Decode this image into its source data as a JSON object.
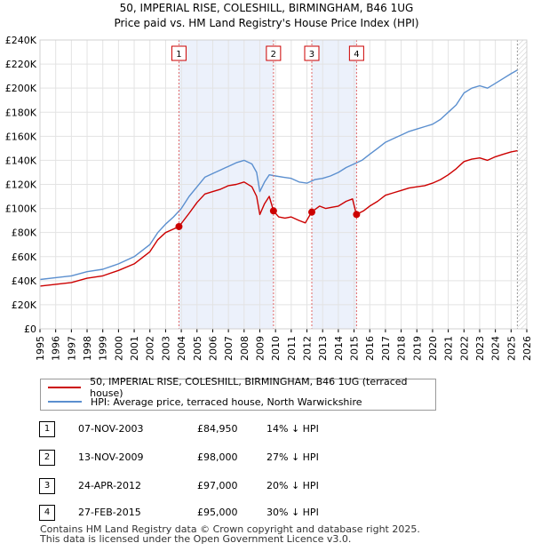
{
  "chart_data": {
    "type": "line",
    "title": "50, IMPERIAL RISE, COLESHILL, BIRMINGHAM, B46 1UG",
    "subtitle": "Price paid vs. HM Land Registry's House Price Index (HPI)",
    "xlim": [
      1995,
      2026
    ],
    "ylim": [
      0,
      240000
    ],
    "x_ticks": [
      "1995",
      "1996",
      "1997",
      "1998",
      "1999",
      "2000",
      "2001",
      "2002",
      "2003",
      "2004",
      "2005",
      "2006",
      "2007",
      "2008",
      "2009",
      "2010",
      "2011",
      "2012",
      "2013",
      "2014",
      "2015",
      "2016",
      "2017",
      "2018",
      "2019",
      "2020",
      "2021",
      "2022",
      "2023",
      "2024",
      "2025",
      "2026"
    ],
    "y_ticks": [
      {
        "value": 0,
        "label": "£0"
      },
      {
        "value": 20000,
        "label": "£20K"
      },
      {
        "value": 40000,
        "label": "£40K"
      },
      {
        "value": 60000,
        "label": "£60K"
      },
      {
        "value": 80000,
        "label": "£80K"
      },
      {
        "value": 100000,
        "label": "£100K"
      },
      {
        "value": 120000,
        "label": "£120K"
      },
      {
        "value": 140000,
        "label": "£140K"
      },
      {
        "value": 160000,
        "label": "£160K"
      },
      {
        "value": 180000,
        "label": "£180K"
      },
      {
        "value": 200000,
        "label": "£200K"
      },
      {
        "value": 220000,
        "label": "£220K"
      },
      {
        "value": 240000,
        "label": "£240K"
      }
    ],
    "data_end": 2025.4,
    "series": [
      {
        "name": "50, IMPERIAL RISE, COLESHILL, BIRMINGHAM, B46 1UG (terraced house)",
        "color": "#cc0000",
        "points": [
          [
            1995.0,
            35500
          ],
          [
            1996.0,
            37000
          ],
          [
            1997.0,
            38500
          ],
          [
            1998.0,
            42000
          ],
          [
            1999.0,
            44000
          ],
          [
            2000.0,
            48500
          ],
          [
            2001.0,
            54000
          ],
          [
            2002.0,
            64000
          ],
          [
            2002.5,
            74000
          ],
          [
            2003.0,
            80000
          ],
          [
            2003.85,
            84950
          ],
          [
            2004.5,
            96000
          ],
          [
            2005.0,
            105000
          ],
          [
            2005.5,
            112000
          ],
          [
            2006.0,
            114000
          ],
          [
            2006.5,
            116000
          ],
          [
            2007.0,
            119000
          ],
          [
            2007.5,
            120000
          ],
          [
            2008.0,
            122000
          ],
          [
            2008.5,
            118000
          ],
          [
            2008.8,
            110000
          ],
          [
            2009.0,
            95000
          ],
          [
            2009.3,
            104000
          ],
          [
            2009.6,
            110000
          ],
          [
            2009.87,
            98000
          ],
          [
            2010.2,
            93000
          ],
          [
            2010.6,
            92000
          ],
          [
            2011.0,
            93000
          ],
          [
            2011.5,
            90000
          ],
          [
            2011.9,
            88000
          ],
          [
            2012.3,
            97000
          ],
          [
            2012.8,
            102000
          ],
          [
            2013.2,
            100000
          ],
          [
            2013.6,
            101000
          ],
          [
            2014.0,
            102000
          ],
          [
            2014.5,
            106000
          ],
          [
            2014.9,
            108000
          ],
          [
            2015.15,
            95000
          ],
          [
            2015.6,
            98000
          ],
          [
            2016.0,
            102000
          ],
          [
            2016.5,
            106000
          ],
          [
            2017.0,
            111000
          ],
          [
            2017.5,
            113000
          ],
          [
            2018.0,
            115000
          ],
          [
            2018.5,
            117000
          ],
          [
            2019.0,
            118000
          ],
          [
            2019.5,
            119000
          ],
          [
            2020.0,
            121000
          ],
          [
            2020.5,
            124000
          ],
          [
            2021.0,
            128000
          ],
          [
            2021.5,
            133000
          ],
          [
            2022.0,
            139000
          ],
          [
            2022.5,
            141000
          ],
          [
            2023.0,
            142000
          ],
          [
            2023.5,
            140000
          ],
          [
            2024.0,
            143000
          ],
          [
            2024.5,
            145000
          ],
          [
            2025.0,
            147000
          ],
          [
            2025.4,
            148000
          ]
        ]
      },
      {
        "name": "HPI: Average price, terraced house, North Warwickshire",
        "color": "#5b8fcf",
        "points": [
          [
            1995.0,
            41000
          ],
          [
            1996.0,
            42500
          ],
          [
            1997.0,
            44000
          ],
          [
            1998.0,
            47500
          ],
          [
            1999.0,
            49500
          ],
          [
            2000.0,
            54000
          ],
          [
            2001.0,
            60000
          ],
          [
            2002.0,
            70000
          ],
          [
            2002.5,
            80000
          ],
          [
            2003.0,
            87000
          ],
          [
            2003.5,
            93000
          ],
          [
            2004.0,
            100000
          ],
          [
            2004.5,
            110000
          ],
          [
            2005.0,
            118000
          ],
          [
            2005.5,
            126000
          ],
          [
            2006.0,
            129000
          ],
          [
            2006.5,
            132000
          ],
          [
            2007.0,
            135000
          ],
          [
            2007.5,
            138000
          ],
          [
            2008.0,
            140000
          ],
          [
            2008.5,
            137000
          ],
          [
            2008.8,
            130000
          ],
          [
            2009.0,
            114000
          ],
          [
            2009.3,
            122000
          ],
          [
            2009.6,
            128000
          ],
          [
            2010.0,
            127000
          ],
          [
            2010.5,
            126000
          ],
          [
            2011.0,
            125000
          ],
          [
            2011.5,
            122000
          ],
          [
            2012.0,
            121000
          ],
          [
            2012.5,
            124000
          ],
          [
            2013.0,
            125000
          ],
          [
            2013.5,
            127000
          ],
          [
            2014.0,
            130000
          ],
          [
            2014.5,
            134000
          ],
          [
            2015.0,
            137000
          ],
          [
            2015.5,
            140000
          ],
          [
            2016.0,
            145000
          ],
          [
            2016.5,
            150000
          ],
          [
            2017.0,
            155000
          ],
          [
            2017.5,
            158000
          ],
          [
            2018.0,
            161000
          ],
          [
            2018.5,
            164000
          ],
          [
            2019.0,
            166000
          ],
          [
            2019.5,
            168000
          ],
          [
            2020.0,
            170000
          ],
          [
            2020.5,
            174000
          ],
          [
            2021.0,
            180000
          ],
          [
            2021.5,
            186000
          ],
          [
            2022.0,
            196000
          ],
          [
            2022.5,
            200000
          ],
          [
            2023.0,
            202000
          ],
          [
            2023.5,
            200000
          ],
          [
            2024.0,
            204000
          ],
          [
            2024.5,
            208000
          ],
          [
            2025.0,
            212000
          ],
          [
            2025.4,
            215000
          ]
        ]
      }
    ],
    "sales": [
      {
        "id": "1",
        "x": 2003.85,
        "value": 84950,
        "date": "07-NOV-2003",
        "price": "£84,950",
        "diff": "14% ↓ HPI"
      },
      {
        "id": "2",
        "x": 2009.87,
        "value": 98000,
        "date": "13-NOV-2009",
        "price": "£98,000",
        "diff": "27% ↓ HPI"
      },
      {
        "id": "3",
        "x": 2012.31,
        "value": 97000,
        "date": "24-APR-2012",
        "price": "£97,000",
        "diff": "20% ↓ HPI"
      },
      {
        "id": "4",
        "x": 2015.16,
        "value": 95000,
        "date": "27-FEB-2015",
        "price": "£95,000",
        "diff": "30% ↓ HPI"
      }
    ]
  },
  "footer": {
    "line1": "Contains HM Land Registry data © Crown copyright and database right 2025.",
    "line2": "This data is licensed under the Open Government Licence v3.0."
  }
}
